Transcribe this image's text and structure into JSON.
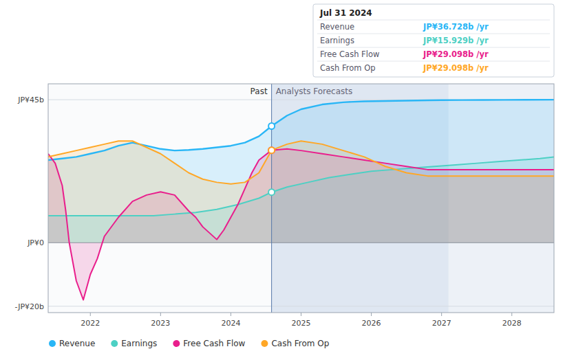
{
  "chart_data": {
    "type": "area",
    "xlim": [
      2021.4,
      2028.6
    ],
    "xticks": [
      2022,
      2023,
      2024,
      2025,
      2026,
      2027,
      2028
    ],
    "ylim": [
      -22,
      50
    ],
    "yticks": [
      {
        "value": 45,
        "label": "JP¥45b"
      },
      {
        "value": 0,
        "label": "JP¥0"
      },
      {
        "value": -20,
        "label": "-JP¥20b"
      }
    ],
    "grid": true,
    "legend": "lower left",
    "divider": {
      "x": 2024.58,
      "labels": [
        "Past",
        "Analysts Forecasts"
      ]
    },
    "shade_end": 2027.1,
    "tooltip": {
      "title": "Jul 31 2024",
      "value_labels": [
        "JP¥36.728b /yr",
        "JP¥15.929b /yr",
        "JP¥29.098b /yr",
        "JP¥29.098b /yr"
      ]
    },
    "series": [
      {
        "name": "Revenue",
        "color": "#29b6f6",
        "x": [
          2021.4,
          2021.6,
          2021.8,
          2022.0,
          2022.2,
          2022.4,
          2022.6,
          2022.8,
          2023.0,
          2023.2,
          2023.4,
          2023.6,
          2023.8,
          2024.0,
          2024.2,
          2024.4,
          2024.58,
          2024.8,
          2025.0,
          2025.3,
          2025.6,
          2025.9,
          2026.2,
          2026.5,
          2026.8,
          2027.0,
          2027.3,
          2027.6,
          2027.9,
          2028.2,
          2028.6
        ],
        "values": [
          26,
          26.5,
          27,
          28,
          29,
          30.5,
          31.5,
          30.5,
          29.5,
          29,
          29.2,
          29.5,
          30,
          30.5,
          31.5,
          33.5,
          36.7,
          40,
          42,
          43.5,
          44.2,
          44.5,
          44.6,
          44.7,
          44.8,
          44.85,
          44.9,
          44.92,
          44.95,
          44.97,
          45
        ]
      },
      {
        "name": "Earnings",
        "color": "#4dd0c4",
        "x": [
          2021.4,
          2021.6,
          2021.8,
          2022.0,
          2022.3,
          2022.6,
          2022.9,
          2023.2,
          2023.5,
          2023.8,
          2024.1,
          2024.4,
          2024.58,
          2024.8,
          2025.1,
          2025.4,
          2025.7,
          2026.0,
          2026.3,
          2026.6,
          2026.9,
          2027.2,
          2027.5,
          2027.8,
          2028.1,
          2028.4,
          2028.6
        ],
        "values": [
          8.5,
          8.5,
          8.5,
          8.5,
          8.5,
          8.5,
          8.5,
          9.0,
          9.5,
          10.5,
          12,
          14,
          15.9,
          17.5,
          19,
          20.5,
          21.5,
          22.5,
          23,
          23.5,
          24,
          24.5,
          25,
          25.5,
          26,
          26.5,
          27
        ]
      },
      {
        "name": "Free Cash Flow",
        "color": "#e91e8c",
        "x": [
          2021.4,
          2021.5,
          2021.6,
          2021.65,
          2021.7,
          2021.8,
          2021.9,
          2022.0,
          2022.1,
          2022.2,
          2022.4,
          2022.6,
          2022.8,
          2023.0,
          2023.2,
          2023.4,
          2023.5,
          2023.6,
          2023.7,
          2023.8,
          2023.9,
          2024.0,
          2024.1,
          2024.2,
          2024.3,
          2024.4,
          2024.58,
          2024.8,
          2025.0,
          2025.3,
          2025.6,
          2025.9,
          2026.2,
          2026.5,
          2026.8,
          2027.0,
          2027.3,
          2027.6,
          2027.9,
          2028.2,
          2028.6
        ],
        "values": [
          28,
          25,
          18,
          10,
          0,
          -12,
          -18,
          -10,
          -5,
          2,
          8,
          13,
          15,
          16,
          15,
          10,
          8,
          5,
          3,
          1,
          4,
          8,
          12,
          17,
          22,
          26,
          29.1,
          29.5,
          29,
          28,
          27,
          26,
          25,
          24,
          23,
          23,
          23,
          23,
          23,
          23,
          23
        ]
      },
      {
        "name": "Cash From Op",
        "color": "#ffa726",
        "x": [
          2021.4,
          2021.6,
          2021.8,
          2022.0,
          2022.2,
          2022.4,
          2022.6,
          2022.8,
          2023.0,
          2023.2,
          2023.4,
          2023.6,
          2023.8,
          2024.0,
          2024.2,
          2024.4,
          2024.58,
          2024.8,
          2025.0,
          2025.3,
          2025.6,
          2025.9,
          2026.2,
          2026.5,
          2026.8,
          2027.0,
          2027.3,
          2027.6,
          2027.9,
          2028.2,
          2028.6
        ],
        "values": [
          27,
          28,
          29,
          30,
          31,
          32,
          32,
          30,
          28,
          25,
          22,
          20,
          19,
          18.5,
          19,
          22,
          29.1,
          31,
          32,
          31,
          29,
          27,
          24,
          22,
          21,
          21,
          21,
          21,
          21,
          21,
          21
        ]
      }
    ]
  }
}
